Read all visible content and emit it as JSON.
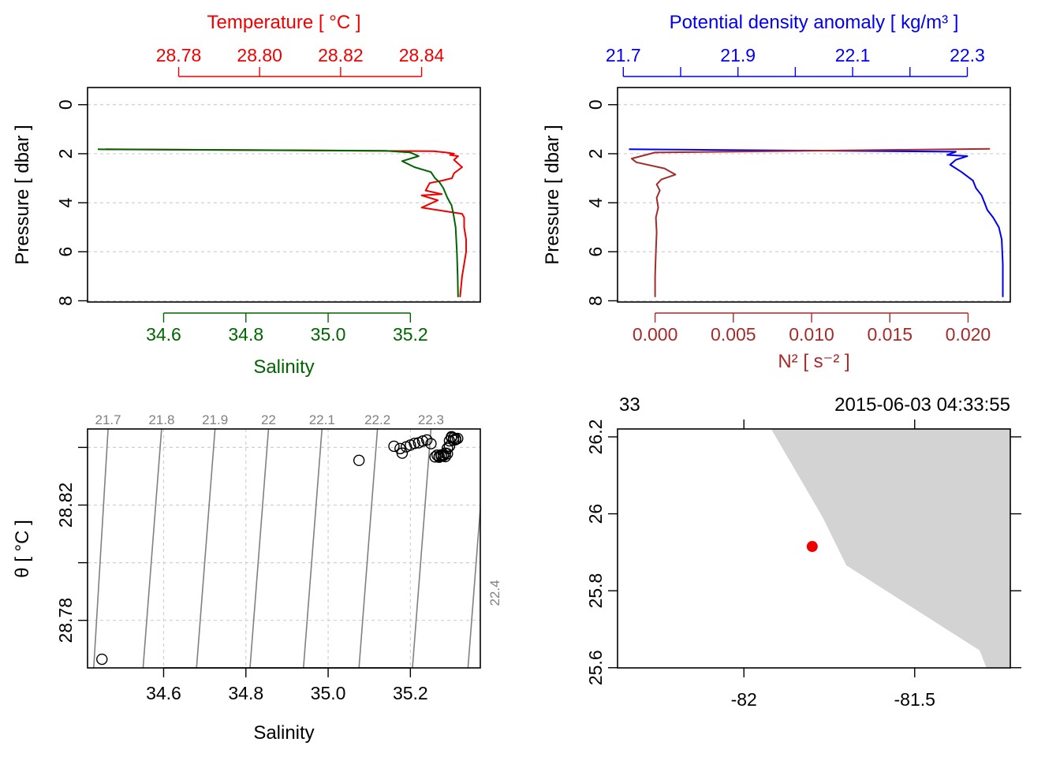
{
  "colors": {
    "temperature": "#ee0000",
    "salinity": "#006400",
    "density": "#0000ee",
    "n2": "#a52a2a",
    "isopycnal": "#808080",
    "land": "#d3d3d3",
    "station": "#ee0000"
  },
  "chart_data": [
    {
      "id": "profile-ts",
      "type": "line",
      "title": "Temperature [ °C ]",
      "ylabel": "Pressure [ dbar ]",
      "xlabel": "Salinity",
      "ylim": [
        8.05,
        -0.7
      ],
      "y_ticks": [
        0,
        2,
        4,
        6,
        8
      ],
      "y_tick_labels": [
        "0",
        "2",
        "4",
        "6",
        "8"
      ],
      "x_top": {
        "label": "Temperature [ °C ]",
        "lim": [
          28.7575,
          28.8545
        ],
        "ticks": [
          28.78,
          28.8,
          28.82,
          28.84
        ],
        "tick_labels": [
          "28.78",
          "28.80",
          "28.82",
          "28.84"
        ]
      },
      "x_bottom": {
        "label": "Salinity",
        "lim": [
          34.415,
          35.37
        ],
        "ticks": [
          34.6,
          34.8,
          35.0,
          35.2
        ],
        "tick_labels": [
          "34.6",
          "34.8",
          "35.0",
          "35.2"
        ]
      },
      "series": [
        {
          "name": "Temperature",
          "axis": "top",
          "x": [
            28.762,
            28.843,
            28.846,
            28.848,
            28.847,
            28.849,
            28.848,
            28.85,
            28.848,
            28.8475,
            28.845,
            28.842,
            28.841,
            28.845,
            28.84,
            28.844,
            28.84,
            28.846,
            28.85,
            28.8505,
            28.8505,
            28.851,
            28.851,
            28.8505,
            28.85,
            28.8495
          ],
          "y": [
            1.82,
            1.9,
            1.95,
            2.0,
            2.05,
            2.1,
            2.25,
            2.55,
            2.8,
            3.0,
            3.1,
            3.2,
            3.5,
            3.65,
            3.7,
            3.9,
            4.2,
            4.35,
            4.45,
            4.6,
            5.0,
            5.5,
            6.0,
            6.5,
            7.0,
            7.85
          ]
        },
        {
          "name": "Salinity",
          "axis": "bottom",
          "x": [
            34.44,
            35.14,
            35.2,
            35.22,
            35.18,
            35.21,
            35.25,
            35.26,
            35.27,
            35.28,
            35.285,
            35.29,
            35.3,
            35.305,
            35.31,
            35.313,
            35.315,
            35.316
          ],
          "y": [
            1.82,
            1.88,
            1.95,
            2.1,
            2.3,
            2.55,
            2.75,
            3.0,
            3.15,
            3.4,
            3.6,
            3.8,
            4.1,
            4.5,
            5.0,
            6.0,
            7.0,
            7.85
          ]
        }
      ]
    },
    {
      "id": "profile-density",
      "type": "line",
      "title": "Potential density anomaly [ kg/m³ ]",
      "ylabel": "Pressure [ dbar ]",
      "xlabel": "N² [ s⁻² ]",
      "ylim": [
        8.05,
        -0.7
      ],
      "y_ticks": [
        0,
        2,
        4,
        6,
        8
      ],
      "y_tick_labels": [
        "0",
        "2",
        "4",
        "6",
        "8"
      ],
      "x_top": {
        "label": "Potential density anomaly [ kg/m³ ]",
        "lim": [
          21.69,
          22.375
        ],
        "ticks": [
          21.7,
          21.8,
          21.9,
          22.0,
          22.1,
          22.2,
          22.3
        ],
        "tick_labels": [
          "21.7",
          "",
          "21.9",
          "",
          "22.1",
          "",
          "22.3"
        ]
      },
      "x_bottom": {
        "label": "N² [ s⁻² ]",
        "lim": [
          -0.0024,
          0.0227
        ],
        "ticks": [
          0.0,
          0.005,
          0.01,
          0.015,
          0.02
        ],
        "tick_labels": [
          "0.000",
          "0.005",
          "0.010",
          "0.015",
          "0.020"
        ]
      },
      "series": [
        {
          "name": "Potential density anomaly",
          "axis": "top",
          "x": [
            21.71,
            22.28,
            22.265,
            22.3,
            22.28,
            22.27,
            22.29,
            22.31,
            22.315,
            22.325,
            22.33,
            22.335,
            22.345,
            22.355,
            22.36,
            22.362,
            22.362
          ],
          "y": [
            1.82,
            1.92,
            2.05,
            2.1,
            2.25,
            2.45,
            2.75,
            3.1,
            3.4,
            3.7,
            4.0,
            4.3,
            4.6,
            5.0,
            5.5,
            6.5,
            7.85
          ]
        },
        {
          "name": "N2",
          "axis": "bottom",
          "x": [
            0.0214,
            0.0,
            -0.0015,
            -0.0012,
            0.0006,
            0.0013,
            0.0004,
            0.0001,
            0.0003,
            0.0001,
            0.0002,
            5e-05,
            0.0001,
            5e-05,
            0.0,
            0.0
          ],
          "y": [
            1.8,
            1.95,
            2.2,
            2.35,
            2.6,
            2.85,
            3.05,
            3.25,
            3.5,
            3.8,
            4.2,
            4.6,
            5.2,
            6.0,
            7.0,
            7.85
          ]
        }
      ]
    },
    {
      "id": "ts-diagram",
      "type": "scatter",
      "xlabel": "Salinity",
      "ylabel": "θ [ °C ]",
      "xlim": [
        34.415,
        35.37
      ],
      "ylim": [
        28.7635,
        28.8464
      ],
      "x_ticks": [
        34.6,
        34.8,
        35.0,
        35.2
      ],
      "x_tick_labels": [
        "34.6",
        "34.8",
        "35.0",
        "35.2"
      ],
      "y_ticks": [
        28.78,
        28.8,
        28.82,
        28.84
      ],
      "y_tick_labels": [
        "28.78",
        "",
        "28.82",
        ""
      ],
      "isopycnals": [
        {
          "label": "21.7",
          "s_bottom": 34.43,
          "s_top": 34.465
        },
        {
          "label": "21.8",
          "s_bottom": 34.55,
          "s_top": 34.595
        },
        {
          "label": "21.9",
          "s_bottom": 34.68,
          "s_top": 34.725
        },
        {
          "label": "22",
          "s_bottom": 34.81,
          "s_top": 34.855
        },
        {
          "label": "22.1",
          "s_bottom": 34.94,
          "s_top": 34.985
        },
        {
          "label": "22.2",
          "s_bottom": 35.075,
          "s_top": 35.12
        },
        {
          "label": "22.3",
          "s_bottom": 35.205,
          "s_top": 35.25
        },
        {
          "label": "22.4",
          "s_bottom": 35.34,
          "s_top": 35.385
        }
      ],
      "points": {
        "salinity": [
          34.45,
          35.075,
          35.16,
          35.175,
          35.18,
          35.19,
          35.2,
          35.21,
          35.22,
          35.23,
          35.24,
          35.25,
          35.26,
          35.27,
          35.275,
          35.28,
          35.285,
          35.29,
          35.295,
          35.3,
          35.305,
          35.31,
          35.265,
          35.27,
          35.28,
          35.29,
          35.275,
          35.285,
          35.295,
          35.305,
          35.31,
          35.315,
          35.3,
          35.31
        ],
        "theta": [
          28.7665,
          28.8355,
          28.8404,
          28.8396,
          28.838,
          28.8402,
          28.8408,
          28.8414,
          28.8416,
          28.8422,
          28.8426,
          28.8413,
          28.8367,
          28.8366,
          28.8374,
          28.8371,
          28.838,
          28.8397,
          28.8423,
          28.8437,
          28.8433,
          28.843,
          28.8373,
          28.8369,
          28.8375,
          28.8378,
          28.837,
          28.8368,
          28.8404,
          28.8425,
          28.8428,
          28.8431,
          28.8434,
          28.8427
        ]
      }
    },
    {
      "id": "station-map",
      "type": "scatter",
      "xlim": [
        -82.37,
        -81.22
      ],
      "ylim": [
        25.5995,
        26.2205
      ],
      "x_ticks": [
        -82,
        -81.5
      ],
      "x_tick_labels": [
        "-82",
        "-81.5"
      ],
      "y_ticks": [
        25.6,
        25.8,
        26.0,
        26.2
      ],
      "y_tick_labels": [
        "25.6",
        "25.8",
        "26",
        "26.2"
      ],
      "top_left_label": "33",
      "top_right_label": "2015-06-03 04:33:55",
      "station": {
        "lon": -81.8,
        "lat": 25.915
      },
      "coastline": {
        "lon": [
          -81.92,
          -81.77,
          -81.7,
          -81.31,
          -81.29,
          -81.22,
          -81.22
        ],
        "lat": [
          26.22,
          25.992,
          25.866,
          25.645,
          25.6,
          25.6,
          26.22
        ]
      }
    }
  ]
}
